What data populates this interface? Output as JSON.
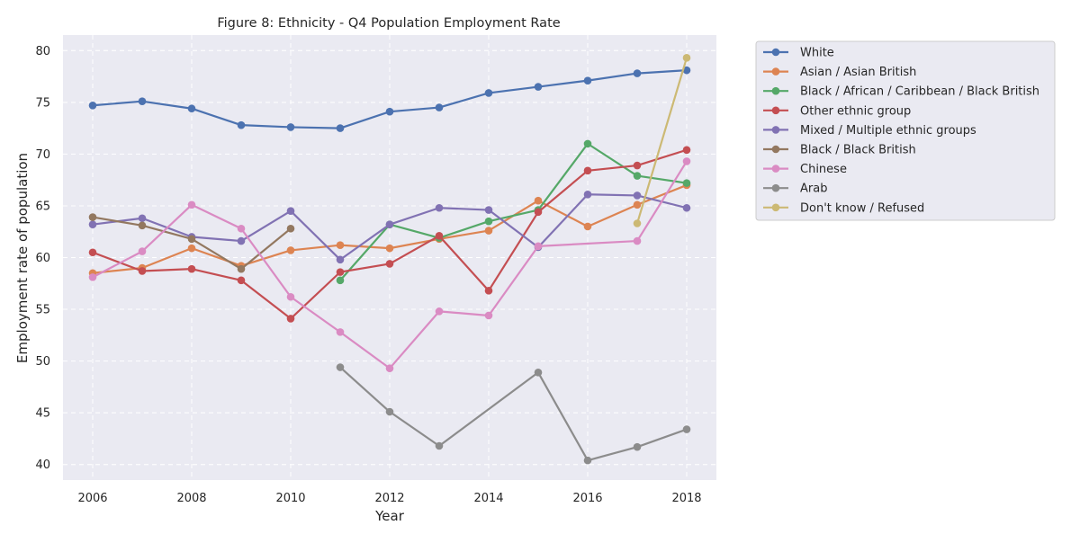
{
  "chart_data": {
    "type": "line",
    "title": "Figure 8: Ethnicity - Q4 Population Employment Rate",
    "xlabel": "Year",
    "ylabel": "Employment rate of population",
    "xlim": [
      2005.4,
      2018.6
    ],
    "ylim": [
      38.5,
      81.5
    ],
    "xticks": [
      2006,
      2008,
      2010,
      2012,
      2014,
      2016,
      2018
    ],
    "yticks": [
      40,
      45,
      50,
      55,
      60,
      65,
      70,
      75,
      80
    ],
    "grid": true,
    "legend_position": "outside-right-top",
    "series": [
      {
        "name": "White",
        "color": "#4c72b0",
        "points": [
          [
            2006,
            74.7
          ],
          [
            2007,
            75.1
          ],
          [
            2008,
            74.4
          ],
          [
            2009,
            72.8
          ],
          [
            2010,
            72.6
          ],
          [
            2011,
            72.5
          ],
          [
            2012,
            74.1
          ],
          [
            2013,
            74.5
          ],
          [
            2014,
            75.9
          ],
          [
            2015,
            76.5
          ],
          [
            2016,
            77.1
          ],
          [
            2017,
            77.8
          ],
          [
            2018,
            78.1
          ]
        ]
      },
      {
        "name": "Asian / Asian British",
        "color": "#dd8452",
        "points": [
          [
            2006,
            58.5
          ],
          [
            2007,
            59.0
          ],
          [
            2008,
            60.9
          ],
          [
            2009,
            59.2
          ],
          [
            2010,
            60.7
          ],
          [
            2011,
            61.2
          ],
          [
            2012,
            60.9
          ],
          [
            2013,
            61.8
          ],
          [
            2014,
            62.6
          ],
          [
            2015,
            65.5
          ],
          [
            2016,
            63.0
          ],
          [
            2017,
            65.1
          ],
          [
            2018,
            67.0
          ]
        ]
      },
      {
        "name": "Black / African / Caribbean / Black British",
        "color": "#55a868",
        "points": [
          [
            2011,
            57.8
          ],
          [
            2012,
            63.2
          ],
          [
            2013,
            61.9
          ],
          [
            2014,
            63.5
          ],
          [
            2015,
            64.6
          ],
          [
            2016,
            71.0
          ],
          [
            2017,
            67.9
          ],
          [
            2018,
            67.2
          ]
        ]
      },
      {
        "name": "Other ethnic group",
        "color": "#c44e52",
        "points": [
          [
            2006,
            60.5
          ],
          [
            2007,
            58.7
          ],
          [
            2008,
            58.9
          ],
          [
            2009,
            57.8
          ],
          [
            2010,
            54.1
          ],
          [
            2011,
            58.6
          ],
          [
            2012,
            59.4
          ],
          [
            2013,
            62.1
          ],
          [
            2014,
            56.8
          ],
          [
            2015,
            64.4
          ],
          [
            2016,
            68.4
          ],
          [
            2017,
            68.9
          ],
          [
            2018,
            70.4
          ]
        ]
      },
      {
        "name": "Mixed / Multiple ethnic groups",
        "color": "#8172b3",
        "points": [
          [
            2006,
            63.2
          ],
          [
            2007,
            63.8
          ],
          [
            2008,
            62.0
          ],
          [
            2009,
            61.6
          ],
          [
            2010,
            64.5
          ],
          [
            2011,
            59.8
          ],
          [
            2012,
            63.2
          ],
          [
            2013,
            64.8
          ],
          [
            2014,
            64.6
          ],
          [
            2015,
            61.0
          ],
          [
            2016,
            66.1
          ],
          [
            2017,
            66.0
          ],
          [
            2018,
            64.8
          ]
        ]
      },
      {
        "name": "Black / Black British",
        "color": "#937860",
        "points": [
          [
            2006,
            63.9
          ],
          [
            2007,
            63.1
          ],
          [
            2008,
            61.8
          ],
          [
            2009,
            58.9
          ],
          [
            2010,
            62.8
          ]
        ]
      },
      {
        "name": "Chinese",
        "color": "#da8bc3",
        "points": [
          [
            2006,
            58.1
          ],
          [
            2007,
            60.6
          ],
          [
            2008,
            65.1
          ],
          [
            2009,
            62.8
          ],
          [
            2010,
            56.2
          ],
          [
            2011,
            52.8
          ],
          [
            2012,
            49.3
          ],
          [
            2013,
            54.8
          ],
          [
            2014,
            54.4
          ],
          [
            2015,
            61.1
          ],
          [
            2017,
            61.6
          ],
          [
            2018,
            69.3
          ]
        ]
      },
      {
        "name": "Arab",
        "color": "#8c8c8c",
        "points": [
          [
            2011,
            49.4
          ],
          [
            2012,
            45.1
          ],
          [
            2013,
            41.8
          ],
          [
            2015,
            48.9
          ],
          [
            2016,
            40.4
          ],
          [
            2017,
            41.7
          ],
          [
            2018,
            43.4
          ]
        ]
      },
      {
        "name": "Don't know / Refused",
        "color": "#ccb974",
        "points": [
          [
            2017,
            63.3
          ],
          [
            2018,
            79.3
          ]
        ]
      }
    ]
  },
  "colors": {
    "plot_background": "#eaeaf2",
    "grid": "#ffffff",
    "legend_background": "#eaeaf2",
    "legend_border": "#cccccc"
  }
}
